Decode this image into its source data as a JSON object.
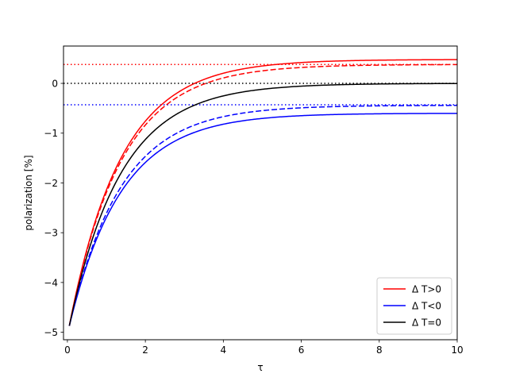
{
  "chart_data": {
    "type": "line",
    "xlabel": "τ",
    "ylabel": "polarization [%]",
    "xlim": [
      -0.1,
      10
    ],
    "ylim": [
      -5.15,
      0.75
    ],
    "x_ticks": [
      0,
      2,
      4,
      6,
      8,
      10
    ],
    "y_ticks": [
      -5,
      -4,
      -3,
      -2,
      -1,
      0
    ],
    "x_tick_labels": [
      "0",
      "2",
      "4",
      "6",
      "8",
      "10"
    ],
    "y_tick_labels": [
      "−5",
      "−4",
      "−3",
      "−2",
      "−1",
      "0"
    ],
    "grid": false,
    "legend_position": "lower-right",
    "curve_model": {
      "y0": -4.87,
      "x0": 0.05,
      "rate": 0.75
    },
    "series": [
      {
        "name": "Δ T>0",
        "color": "#ff0000",
        "style": "solid",
        "show_in_legend": true,
        "start": -4.87,
        "asymptote": 0.48
      },
      {
        "name": "",
        "color": "#ff0000",
        "style": "dashed",
        "show_in_legend": false,
        "start": -4.87,
        "asymptote": 0.38
      },
      {
        "name": "Δ T<0",
        "color": "#0000ff",
        "style": "solid",
        "show_in_legend": true,
        "start": -4.87,
        "asymptote": -0.6
      },
      {
        "name": "",
        "color": "#0000ff",
        "style": "dashed",
        "show_in_legend": false,
        "start": -4.87,
        "asymptote": -0.44
      },
      {
        "name": "Δ T=0",
        "color": "#000000",
        "style": "solid",
        "show_in_legend": true,
        "start": -4.87,
        "asymptote": 0.0
      }
    ],
    "reference_lines": [
      {
        "y": 0.38,
        "color": "#ff0000",
        "style": "dotted"
      },
      {
        "y": 0.0,
        "color": "#000000",
        "style": "dotted"
      },
      {
        "y": -0.43,
        "color": "#0000ff",
        "style": "dotted"
      }
    ]
  }
}
